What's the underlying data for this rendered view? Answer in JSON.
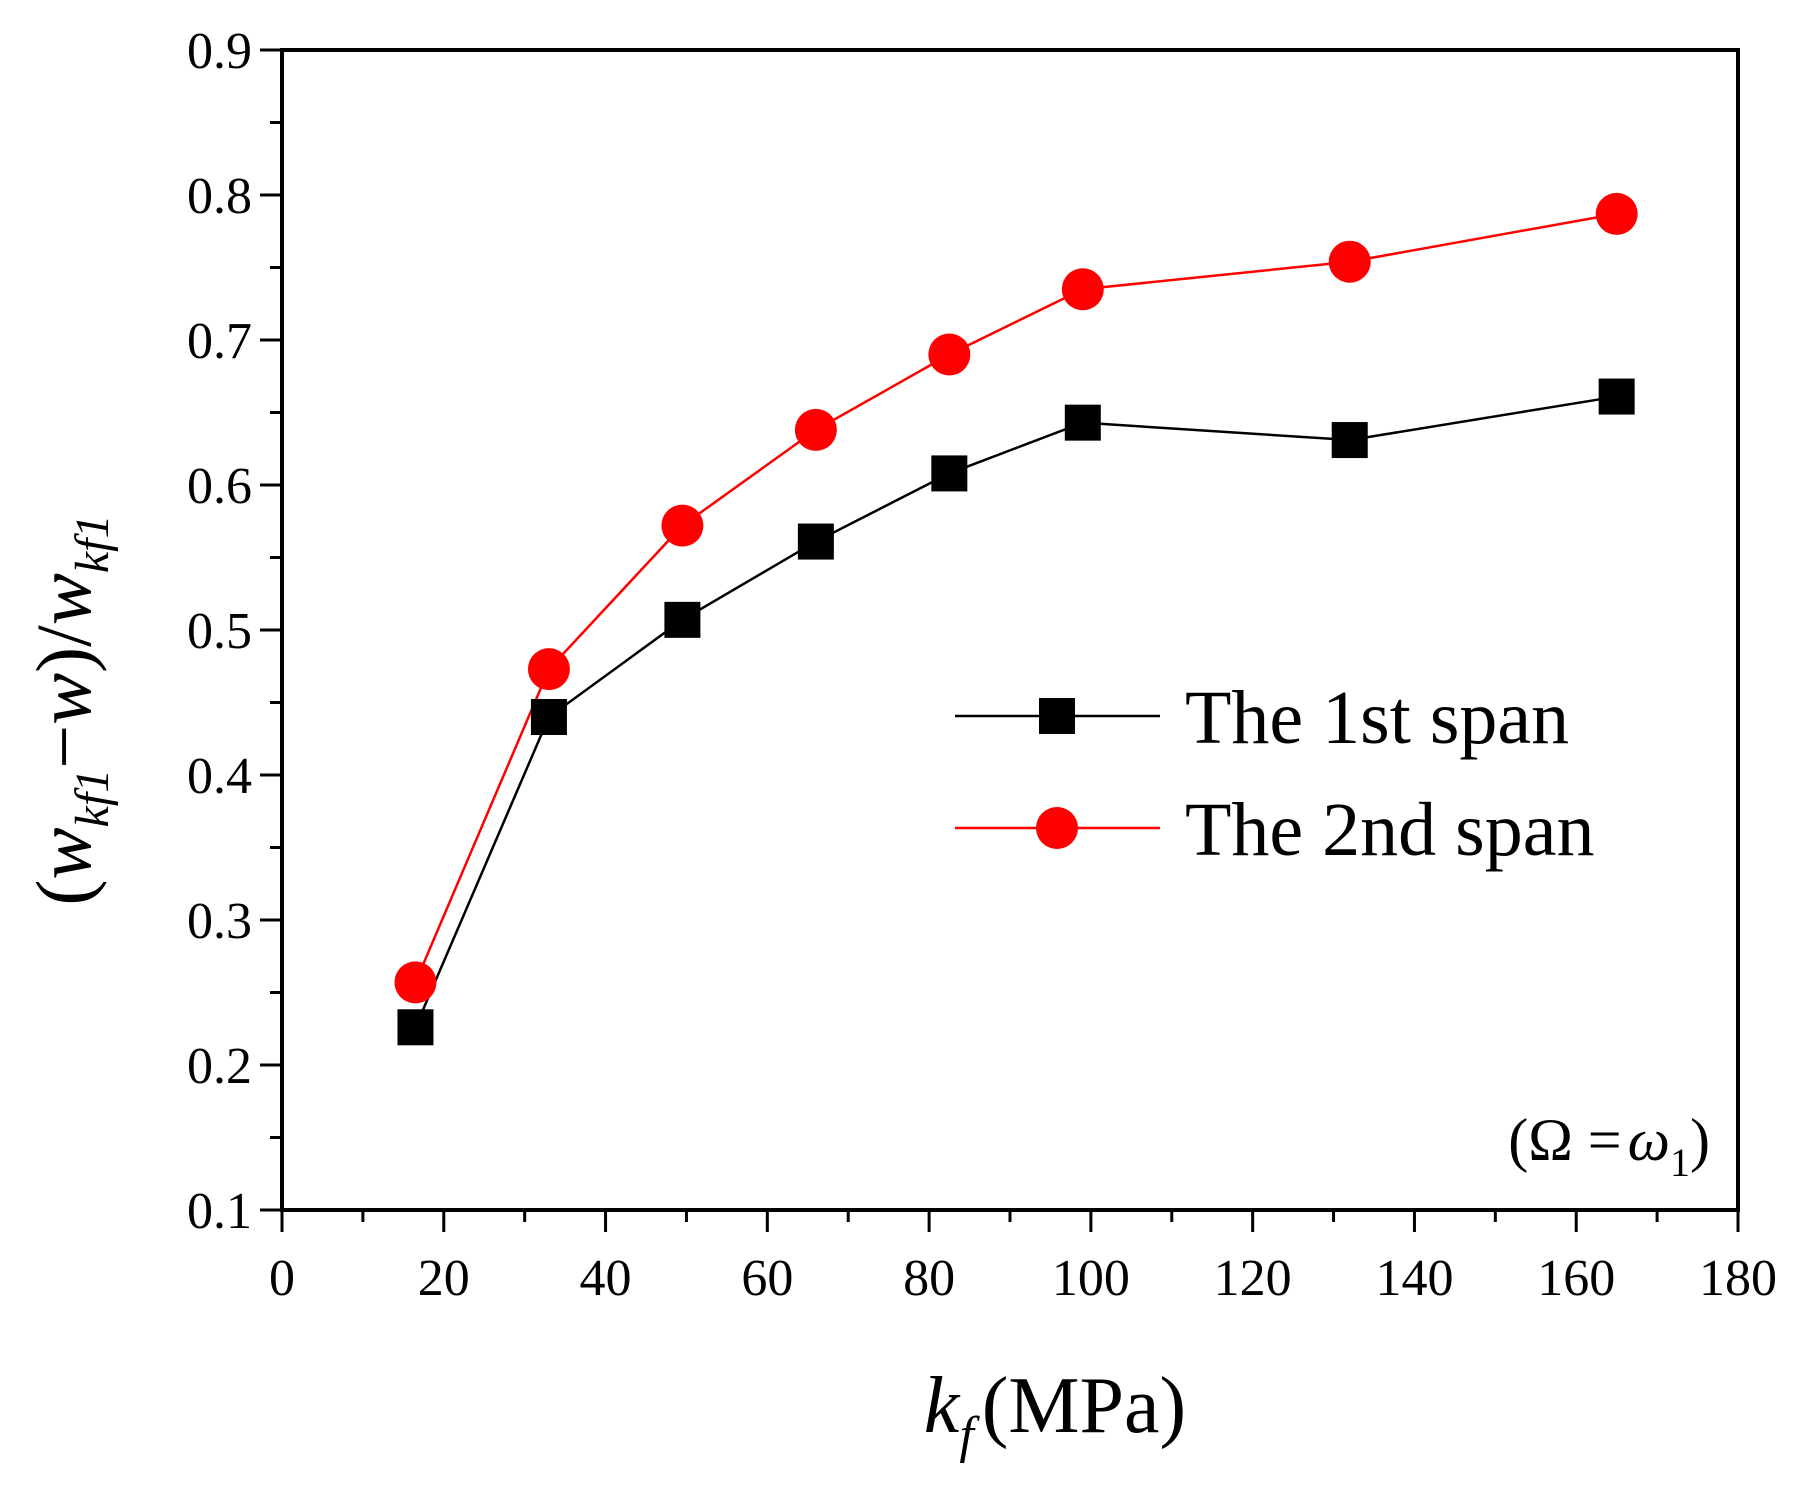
{
  "chart_data": {
    "type": "line",
    "title": "",
    "x": [
      16.5,
      33,
      49.5,
      66,
      82.5,
      99,
      132,
      165
    ],
    "series": [
      {
        "name": "The 1st span",
        "values": [
          0.226,
          0.44,
          0.507,
          0.561,
          0.608,
          0.643,
          0.631,
          0.661
        ],
        "color": "#000000",
        "marker": "square"
      },
      {
        "name": "The 2nd span",
        "values": [
          0.257,
          0.473,
          0.572,
          0.638,
          0.69,
          0.735,
          0.754,
          0.787
        ],
        "color": "#ff0000",
        "marker": "circle"
      }
    ],
    "xlim": [
      0,
      180
    ],
    "ylim": [
      0.1,
      0.9
    ],
    "xticks": [
      "0",
      "20",
      "40",
      "60",
      "80",
      "100",
      "120",
      "140",
      "160",
      "180"
    ],
    "yticks": [
      "0.1",
      "0.2",
      "0.3",
      "0.4",
      "0.5",
      "0.6",
      "0.7",
      "0.8",
      "0.9"
    ],
    "xlabel": {
      "symbol": "k",
      "subscript": "f",
      "unit": "(MPa)"
    },
    "ylabel": {
      "open": "(",
      "w1": "w",
      "sub1": "kf1",
      "minus": "−",
      "w2": "w",
      "close": ")/",
      "w3": "w",
      "sub2": "kf1"
    },
    "annotation": {
      "open": "(Ω =",
      "omega": "ω",
      "sub": "1",
      "close": ")"
    },
    "legend_position": "center-right",
    "grid": false
  }
}
